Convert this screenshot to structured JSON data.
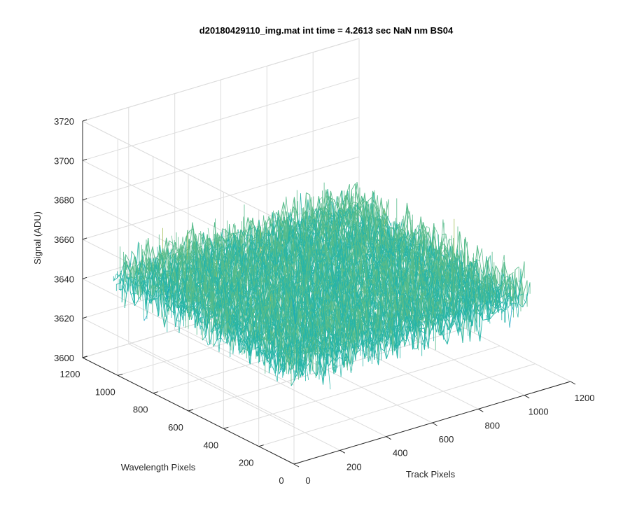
{
  "chart_data": {
    "type": "surface",
    "title": "d20180429110_img.mat int time = 4.2613 sec  NaN nm BS04",
    "xlabel": "Track Pixels",
    "ylabel": "Wavelength Pixels",
    "zlabel": "Signal (ADU)",
    "xlim": [
      0,
      1200
    ],
    "ylim": [
      0,
      1200
    ],
    "zlim": [
      3600,
      3720
    ],
    "x_ticks": [
      0,
      200,
      400,
      600,
      800,
      1000,
      1200
    ],
    "y_ticks": [
      0,
      200,
      400,
      600,
      800,
      1000,
      1200
    ],
    "z_ticks": [
      3600,
      3620,
      3640,
      3660,
      3680,
      3700,
      3720
    ],
    "x_tick_labels": [
      "0",
      "200",
      "400",
      "600",
      "800",
      "1000",
      "1200"
    ],
    "y_tick_labels": [
      "0",
      "200",
      "400",
      "600",
      "800",
      "1000",
      "1200"
    ],
    "z_tick_labels": [
      "3600",
      "3620",
      "3640",
      "3660",
      "3680",
      "3700",
      "3720"
    ],
    "surface": {
      "x_range": [
        0,
        1024
      ],
      "y_range": [
        0,
        1024
      ],
      "signal_mean": 3650,
      "signal_spread": 12,
      "signal_min": 3605,
      "signal_max": 3700
    },
    "colormap": [
      "#0072bd",
      "#0ea0cc",
      "#26b5a8",
      "#57bb8a",
      "#a6c05a",
      "#e4b83a"
    ],
    "grid": true
  }
}
